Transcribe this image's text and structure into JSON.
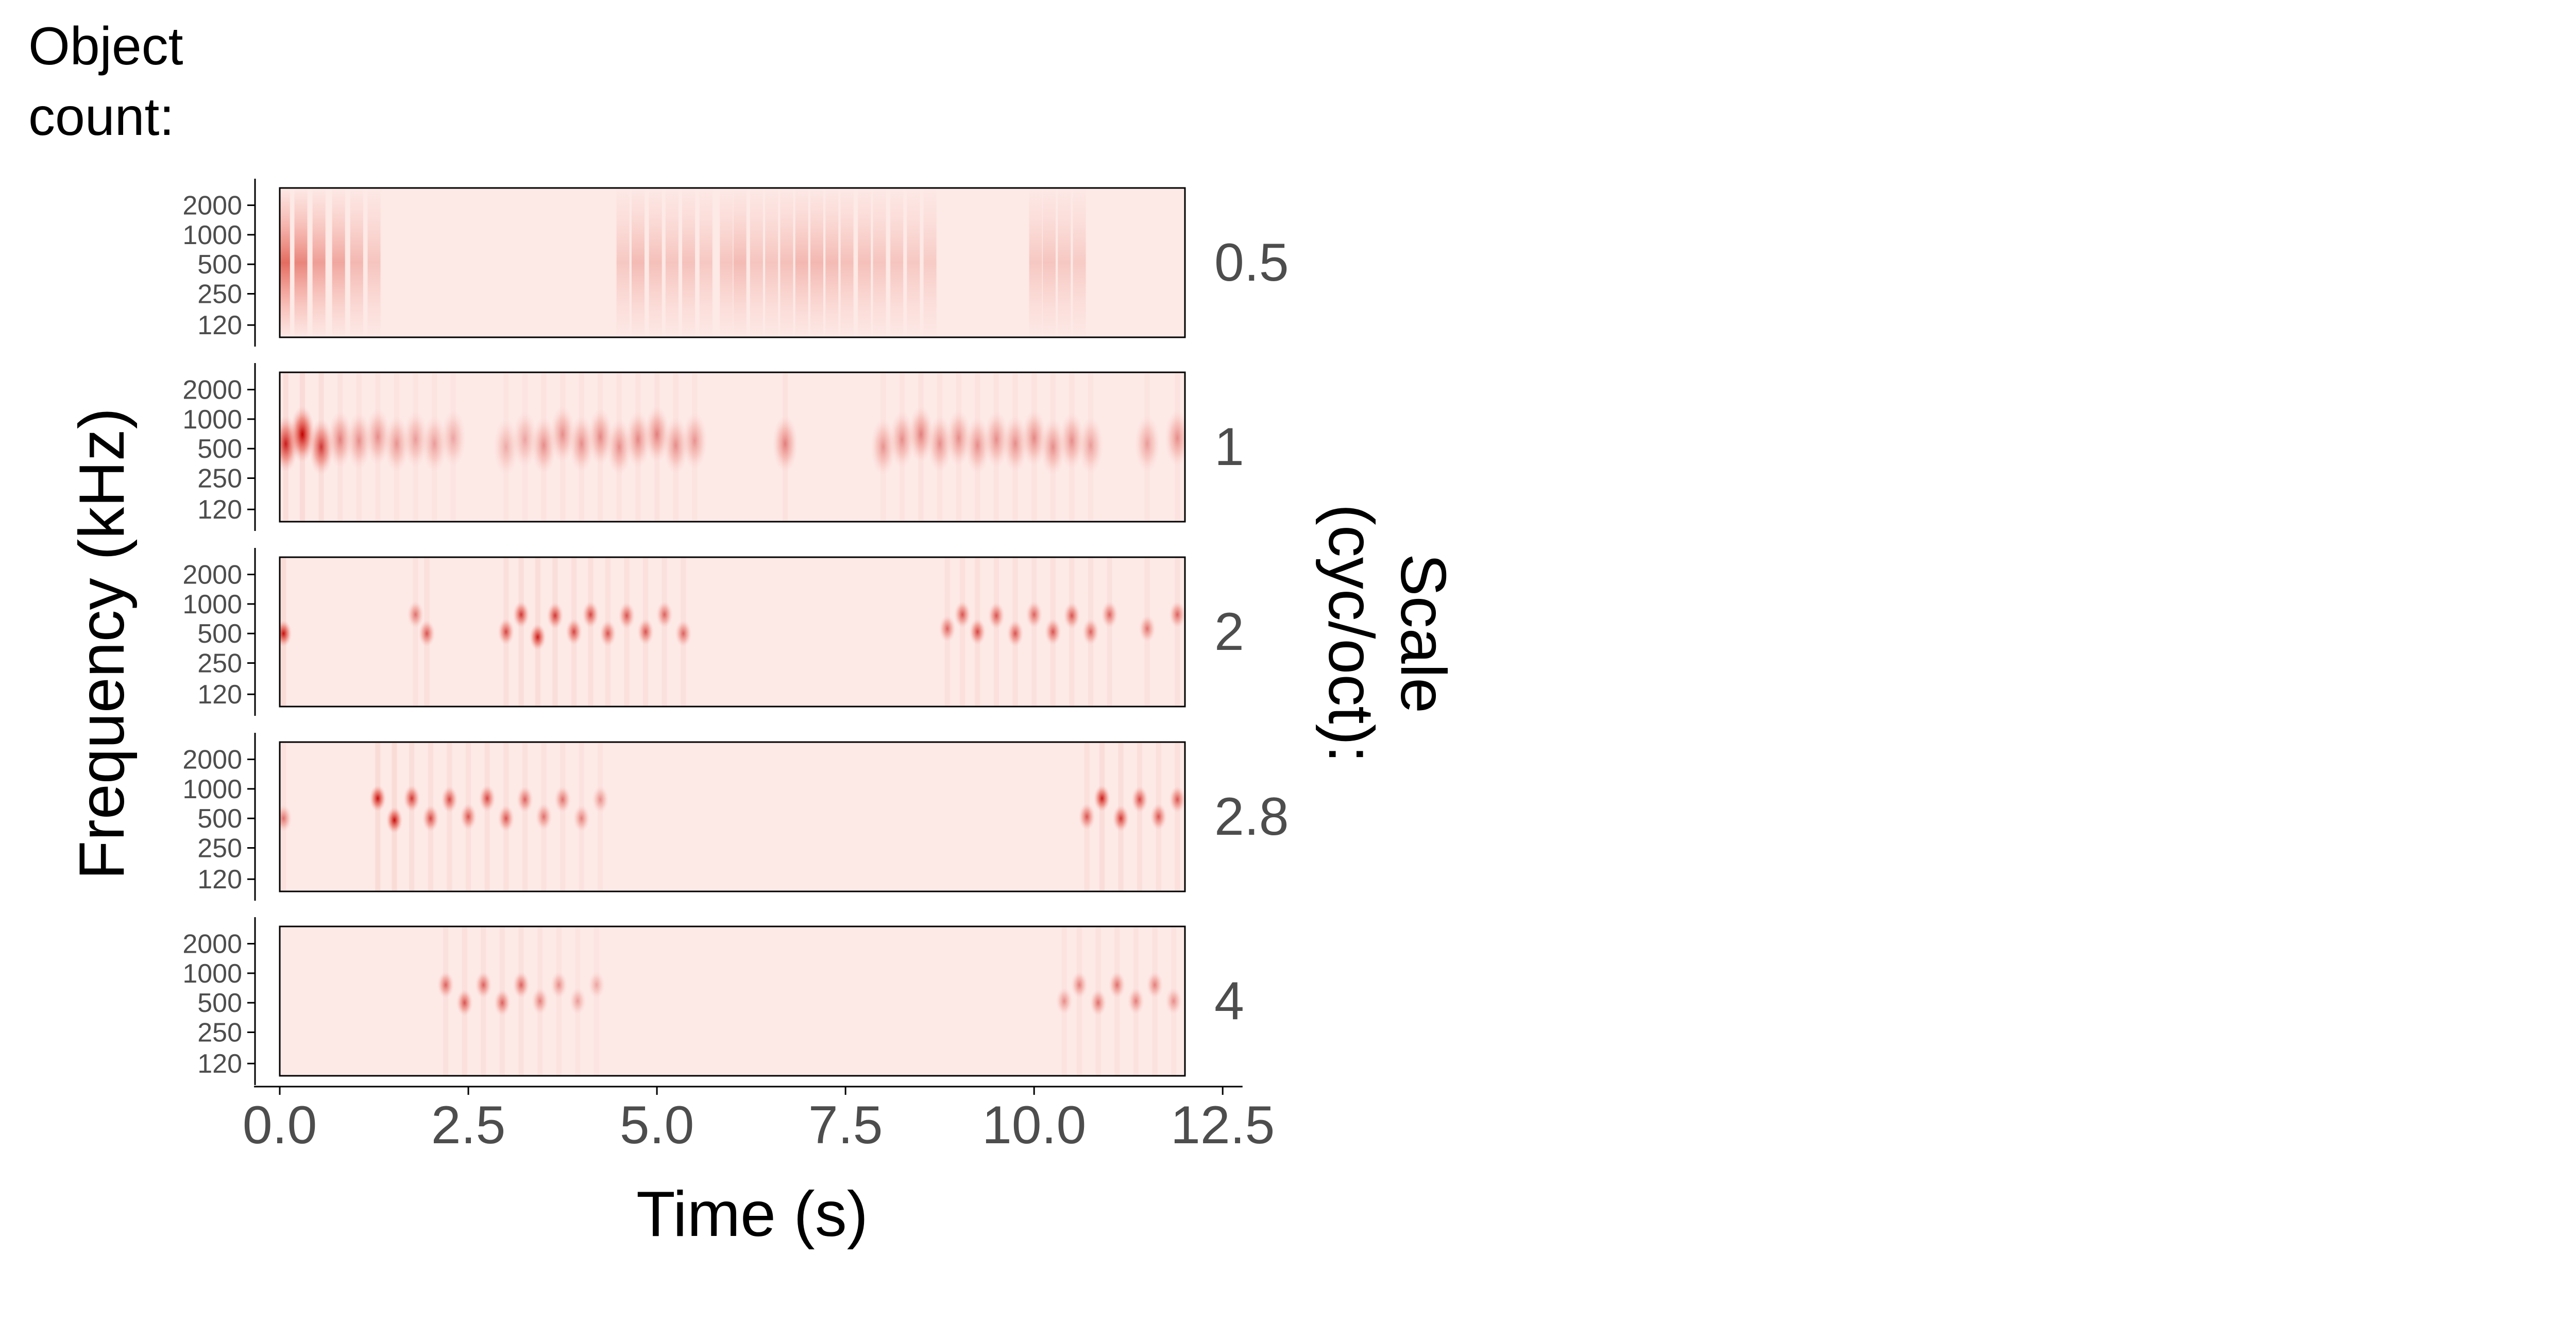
{
  "chart_data": {
    "type": "heatmap",
    "title": "Object count:",
    "xlabel": "Time (s)",
    "ylabel": "Frequency (kHz)",
    "facet_label": "Scale (cyc/oct):",
    "x_range": [
      0,
      12
    ],
    "xlim": [
      -0.3,
      12.9
    ],
    "x_ticks": [
      0.0,
      2.5,
      5.0,
      7.5,
      10.0,
      12.5
    ],
    "x_tick_labels": [
      "0.0",
      "2.5",
      "5.0",
      "7.5",
      "10.0",
      "12.5"
    ],
    "y_scale": "log",
    "y_range": [
      90,
      3000
    ],
    "y_ticks": [
      120,
      250,
      500,
      1000,
      2000
    ],
    "y_tick_labels": [
      "120",
      "250",
      "500",
      "1000",
      "2000"
    ],
    "colors": {
      "low": "#fde9e6",
      "high": "#c00000",
      "axis": "#000000",
      "tick_text": "#4d4d4d"
    },
    "panels": [
      {
        "scale": "0.5",
        "events": [
          {
            "t": 0.05,
            "f": 600,
            "a": 0.75
          },
          {
            "t": 0.28,
            "f": 600,
            "a": 0.6
          },
          {
            "t": 0.52,
            "f": 600,
            "a": 0.45
          },
          {
            "t": 0.78,
            "f": 600,
            "a": 0.4
          },
          {
            "t": 1.02,
            "f": 600,
            "a": 0.3
          },
          {
            "t": 1.25,
            "f": 600,
            "a": 0.22
          },
          {
            "t": 4.55,
            "f": 600,
            "a": 0.2
          },
          {
            "t": 4.75,
            "f": 600,
            "a": 0.28
          },
          {
            "t": 4.98,
            "f": 600,
            "a": 0.25
          },
          {
            "t": 5.2,
            "f": 600,
            "a": 0.22
          },
          {
            "t": 5.42,
            "f": 600,
            "a": 0.24
          },
          {
            "t": 5.65,
            "f": 600,
            "a": 0.2
          },
          {
            "t": 5.92,
            "f": 600,
            "a": 0.22
          },
          {
            "t": 6.1,
            "f": 600,
            "a": 0.28
          },
          {
            "t": 6.32,
            "f": 600,
            "a": 0.22
          },
          {
            "t": 6.52,
            "f": 600,
            "a": 0.22
          },
          {
            "t": 6.72,
            "f": 600,
            "a": 0.25
          },
          {
            "t": 6.92,
            "f": 600,
            "a": 0.3
          },
          {
            "t": 7.12,
            "f": 600,
            "a": 0.3
          },
          {
            "t": 7.32,
            "f": 600,
            "a": 0.28
          },
          {
            "t": 7.52,
            "f": 600,
            "a": 0.25
          },
          {
            "t": 7.75,
            "f": 600,
            "a": 0.25
          },
          {
            "t": 7.95,
            "f": 600,
            "a": 0.22
          },
          {
            "t": 8.18,
            "f": 600,
            "a": 0.22
          },
          {
            "t": 8.4,
            "f": 600,
            "a": 0.2
          },
          {
            "t": 8.62,
            "f": 600,
            "a": 0.18
          },
          {
            "t": 10.02,
            "f": 600,
            "a": 0.2
          },
          {
            "t": 10.2,
            "f": 600,
            "a": 0.22
          },
          {
            "t": 10.4,
            "f": 600,
            "a": 0.2
          },
          {
            "t": 10.6,
            "f": 600,
            "a": 0.18
          }
        ]
      },
      {
        "scale": "1",
        "events": [
          {
            "t": 0.08,
            "f": 560,
            "a": 0.7
          },
          {
            "t": 0.3,
            "f": 700,
            "a": 0.8
          },
          {
            "t": 0.55,
            "f": 520,
            "a": 0.6
          },
          {
            "t": 0.8,
            "f": 620,
            "a": 0.35
          },
          {
            "t": 1.05,
            "f": 600,
            "a": 0.3
          },
          {
            "t": 1.3,
            "f": 660,
            "a": 0.3
          },
          {
            "t": 1.55,
            "f": 560,
            "a": 0.28
          },
          {
            "t": 1.8,
            "f": 620,
            "a": 0.25
          },
          {
            "t": 2.05,
            "f": 560,
            "a": 0.25
          },
          {
            "t": 2.3,
            "f": 640,
            "a": 0.22
          },
          {
            "t": 3.0,
            "f": 520,
            "a": 0.2
          },
          {
            "t": 3.25,
            "f": 620,
            "a": 0.22
          },
          {
            "t": 3.5,
            "f": 540,
            "a": 0.3
          },
          {
            "t": 3.75,
            "f": 700,
            "a": 0.3
          },
          {
            "t": 4.0,
            "f": 560,
            "a": 0.3
          },
          {
            "t": 4.25,
            "f": 660,
            "a": 0.32
          },
          {
            "t": 4.5,
            "f": 520,
            "a": 0.3
          },
          {
            "t": 4.75,
            "f": 620,
            "a": 0.32
          },
          {
            "t": 5.0,
            "f": 700,
            "a": 0.35
          },
          {
            "t": 5.25,
            "f": 540,
            "a": 0.3
          },
          {
            "t": 5.5,
            "f": 600,
            "a": 0.28
          },
          {
            "t": 6.7,
            "f": 560,
            "a": 0.35
          },
          {
            "t": 8.0,
            "f": 520,
            "a": 0.28
          },
          {
            "t": 8.25,
            "f": 620,
            "a": 0.3
          },
          {
            "t": 8.5,
            "f": 700,
            "a": 0.35
          },
          {
            "t": 8.75,
            "f": 560,
            "a": 0.3
          },
          {
            "t": 9.0,
            "f": 640,
            "a": 0.3
          },
          {
            "t": 9.25,
            "f": 540,
            "a": 0.3
          },
          {
            "t": 9.5,
            "f": 620,
            "a": 0.3
          },
          {
            "t": 9.75,
            "f": 560,
            "a": 0.3
          },
          {
            "t": 10.0,
            "f": 640,
            "a": 0.32
          },
          {
            "t": 10.25,
            "f": 520,
            "a": 0.3
          },
          {
            "t": 10.5,
            "f": 600,
            "a": 0.3
          },
          {
            "t": 10.75,
            "f": 540,
            "a": 0.25
          },
          {
            "t": 11.5,
            "f": 560,
            "a": 0.25
          },
          {
            "t": 11.9,
            "f": 640,
            "a": 0.3
          }
        ]
      },
      {
        "scale": "2",
        "events": [
          {
            "t": 0.05,
            "f": 500,
            "a": 0.75
          },
          {
            "t": 1.8,
            "f": 780,
            "a": 0.4
          },
          {
            "t": 1.95,
            "f": 500,
            "a": 0.5
          },
          {
            "t": 3.0,
            "f": 520,
            "a": 0.55
          },
          {
            "t": 3.2,
            "f": 780,
            "a": 0.6
          },
          {
            "t": 3.42,
            "f": 460,
            "a": 0.7
          },
          {
            "t": 3.65,
            "f": 760,
            "a": 0.6
          },
          {
            "t": 3.9,
            "f": 520,
            "a": 0.55
          },
          {
            "t": 4.12,
            "f": 780,
            "a": 0.55
          },
          {
            "t": 4.35,
            "f": 500,
            "a": 0.5
          },
          {
            "t": 4.6,
            "f": 760,
            "a": 0.5
          },
          {
            "t": 4.85,
            "f": 520,
            "a": 0.5
          },
          {
            "t": 5.1,
            "f": 780,
            "a": 0.45
          },
          {
            "t": 5.35,
            "f": 500,
            "a": 0.45
          },
          {
            "t": 8.85,
            "f": 560,
            "a": 0.45
          },
          {
            "t": 9.05,
            "f": 780,
            "a": 0.5
          },
          {
            "t": 9.25,
            "f": 520,
            "a": 0.55
          },
          {
            "t": 9.5,
            "f": 760,
            "a": 0.5
          },
          {
            "t": 9.75,
            "f": 500,
            "a": 0.5
          },
          {
            "t": 10.0,
            "f": 780,
            "a": 0.45
          },
          {
            "t": 10.25,
            "f": 520,
            "a": 0.5
          },
          {
            "t": 10.5,
            "f": 760,
            "a": 0.5
          },
          {
            "t": 10.75,
            "f": 520,
            "a": 0.45
          },
          {
            "t": 11.0,
            "f": 780,
            "a": 0.45
          },
          {
            "t": 11.5,
            "f": 560,
            "a": 0.4
          },
          {
            "t": 11.9,
            "f": 780,
            "a": 0.45
          }
        ]
      },
      {
        "scale": "2.8",
        "events": [
          {
            "t": 0.05,
            "f": 500,
            "a": 0.4
          },
          {
            "t": 1.3,
            "f": 800,
            "a": 0.75
          },
          {
            "t": 1.52,
            "f": 480,
            "a": 0.75
          },
          {
            "t": 1.75,
            "f": 800,
            "a": 0.6
          },
          {
            "t": 2.0,
            "f": 500,
            "a": 0.55
          },
          {
            "t": 2.25,
            "f": 780,
            "a": 0.55
          },
          {
            "t": 2.5,
            "f": 520,
            "a": 0.5
          },
          {
            "t": 2.75,
            "f": 800,
            "a": 0.55
          },
          {
            "t": 3.0,
            "f": 500,
            "a": 0.5
          },
          {
            "t": 3.25,
            "f": 780,
            "a": 0.45
          },
          {
            "t": 3.5,
            "f": 520,
            "a": 0.4
          },
          {
            "t": 3.75,
            "f": 780,
            "a": 0.4
          },
          {
            "t": 4.0,
            "f": 500,
            "a": 0.35
          },
          {
            "t": 4.25,
            "f": 780,
            "a": 0.3
          },
          {
            "t": 10.7,
            "f": 520,
            "a": 0.5
          },
          {
            "t": 10.9,
            "f": 800,
            "a": 0.7
          },
          {
            "t": 11.15,
            "f": 500,
            "a": 0.6
          },
          {
            "t": 11.4,
            "f": 780,
            "a": 0.55
          },
          {
            "t": 11.65,
            "f": 520,
            "a": 0.5
          },
          {
            "t": 11.9,
            "f": 780,
            "a": 0.5
          }
        ]
      },
      {
        "scale": "4",
        "events": [
          {
            "t": 2.2,
            "f": 760,
            "a": 0.45
          },
          {
            "t": 2.45,
            "f": 500,
            "a": 0.5
          },
          {
            "t": 2.7,
            "f": 760,
            "a": 0.45
          },
          {
            "t": 2.95,
            "f": 500,
            "a": 0.45
          },
          {
            "t": 3.2,
            "f": 760,
            "a": 0.45
          },
          {
            "t": 3.45,
            "f": 520,
            "a": 0.35
          },
          {
            "t": 3.7,
            "f": 760,
            "a": 0.3
          },
          {
            "t": 3.95,
            "f": 520,
            "a": 0.25
          },
          {
            "t": 4.2,
            "f": 760,
            "a": 0.22
          },
          {
            "t": 10.4,
            "f": 520,
            "a": 0.3
          },
          {
            "t": 10.6,
            "f": 760,
            "a": 0.35
          },
          {
            "t": 10.85,
            "f": 500,
            "a": 0.4
          },
          {
            "t": 11.1,
            "f": 760,
            "a": 0.4
          },
          {
            "t": 11.35,
            "f": 520,
            "a": 0.35
          },
          {
            "t": 11.6,
            "f": 760,
            "a": 0.35
          },
          {
            "t": 11.85,
            "f": 520,
            "a": 0.3
          }
        ]
      }
    ]
  }
}
